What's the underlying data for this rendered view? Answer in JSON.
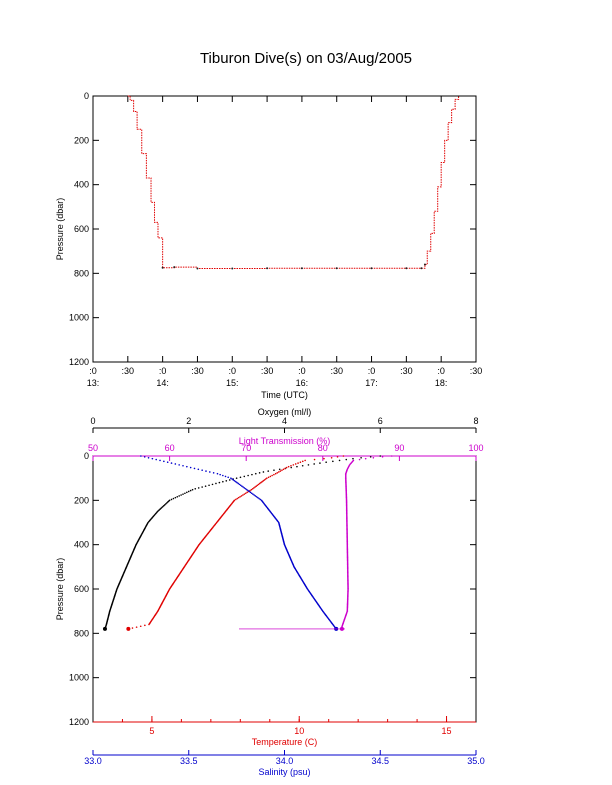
{
  "page": {
    "title": "Tiburon Dive(s) on 03/Aug/2005"
  },
  "colors": {
    "axis": "#000000",
    "temperature": "#e00000",
    "salinity": "#0000cc",
    "light": "#cc00cc",
    "oxygen": "#000000",
    "dive_track": "#e00000"
  },
  "chart_data": [
    {
      "type": "line",
      "title": "Tiburon Dive(s) on 03/Aug/2005",
      "xlabel": "Time (UTC)",
      "ylabel": "Pressure (dbar)",
      "y_inverted": true,
      "ylim": [
        1200,
        0
      ],
      "xlim": [
        "13:00",
        "18:30"
      ],
      "grid": false,
      "x_ticks_top_row": [
        ":0",
        ":30",
        ":0",
        ":30",
        ":0",
        ":30",
        ":0",
        ":30",
        ":0",
        ":30",
        ":0",
        ":30"
      ],
      "x_ticks_hours": [
        "13:",
        "14:",
        "15:",
        "16:",
        "17:",
        "18:"
      ],
      "y_ticks": [
        "0",
        "200",
        "400",
        "600",
        "800",
        "1000",
        "1200"
      ],
      "series": [
        {
          "x": [
            "13:30",
            "13:32",
            "13:35",
            "13:38",
            "13:42",
            "13:46",
            "13:50",
            "13:53",
            "13:56",
            "14:00",
            "14:10",
            "14:30",
            "15:00",
            "15:30",
            "16:00",
            "16:30",
            "17:00",
            "17:30",
            "17:43",
            "17:46",
            "17:48",
            "17:51",
            "17:54",
            "17:57",
            "18:00",
            "18:03",
            "18:06",
            "18:09",
            "18:12",
            "18:15"
          ],
          "y": [
            0,
            20,
            70,
            150,
            260,
            370,
            480,
            570,
            640,
            775,
            772,
            778,
            778,
            777,
            777,
            777,
            777,
            777,
            777,
            760,
            700,
            620,
            520,
            410,
            300,
            200,
            120,
            60,
            15,
            0
          ]
        }
      ]
    },
    {
      "type": "scatter",
      "y_label": "Pressure (dbar)",
      "y_inverted": true,
      "ylim": [
        1200,
        0
      ],
      "y_ticks": [
        "0",
        "200",
        "400",
        "600",
        "800",
        "1000",
        "1200"
      ],
      "grid": false,
      "axes": [
        {
          "name": "oxygen",
          "label": "Oxygen (ml/l)",
          "range": [
            0,
            8
          ],
          "ticks": [
            "0",
            "2",
            "4",
            "6",
            "8"
          ],
          "position": "top"
        },
        {
          "name": "light",
          "label": "Light Transmission (%)",
          "range": [
            50,
            100
          ],
          "ticks": [
            "50",
            "60",
            "70",
            "80",
            "90",
            "100"
          ],
          "position": "top"
        },
        {
          "name": "temperature",
          "label": "Temperature (C)",
          "range": [
            3,
            16
          ],
          "ticks": [
            "5",
            "10",
            "15"
          ],
          "position": "bottom"
        },
        {
          "name": "salinity",
          "label": "Salinity (psu)",
          "range": [
            33.0,
            35.0
          ],
          "ticks": [
            "33.0",
            "33.5",
            "34.0",
            "34.5",
            "35.0"
          ],
          "position": "bottom"
        }
      ],
      "series": [
        {
          "axis": "oxygen",
          "pressure": [
            0,
            10,
            30,
            50,
            70,
            100,
            150,
            200,
            250,
            300,
            400,
            500,
            600,
            700,
            760,
            780
          ],
          "values": [
            6.0,
            5.5,
            4.8,
            4.2,
            3.6,
            3.0,
            2.1,
            1.6,
            1.35,
            1.15,
            0.9,
            0.7,
            0.5,
            0.35,
            0.28,
            0.25
          ]
        },
        {
          "axis": "light",
          "pressure": [
            0,
            10,
            20,
            40,
            60,
            80,
            100,
            200,
            400,
            600,
            700,
            770,
            780
          ],
          "values": [
            89,
            86,
            84,
            83.5,
            83.2,
            83.0,
            83.0,
            83.1,
            83.2,
            83.3,
            83.2,
            82.5,
            82.5
          ]
        },
        {
          "axis": "temperature",
          "pressure": [
            0,
            10,
            20,
            30,
            50,
            80,
            100,
            150,
            200,
            300,
            400,
            500,
            600,
            700,
            760,
            780
          ],
          "values": [
            11.5,
            11.0,
            10.2,
            10.0,
            9.6,
            9.2,
            8.9,
            8.4,
            7.8,
            7.2,
            6.6,
            6.1,
            5.6,
            5.2,
            4.9,
            4.2
          ]
        },
        {
          "axis": "salinity",
          "pressure": [
            0,
            20,
            40,
            60,
            80,
            100,
            150,
            200,
            300,
            400,
            500,
            600,
            700,
            780
          ],
          "values": [
            33.25,
            33.35,
            33.45,
            33.55,
            33.65,
            33.72,
            33.8,
            33.88,
            33.97,
            34.0,
            34.05,
            34.12,
            34.2,
            34.27
          ]
        }
      ]
    }
  ]
}
